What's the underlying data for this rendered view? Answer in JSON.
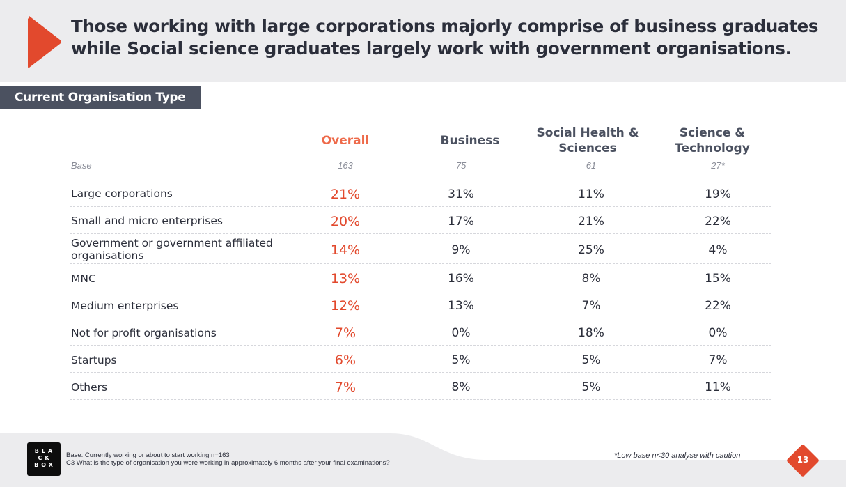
{
  "headline": {
    "line1": "Those working with large corporations majorly comprise of business graduates",
    "line2": "while Social science graduates largely work with government organisations."
  },
  "section_tag": "Current Organisation Type",
  "columns": {
    "overall": "Overall",
    "business": "Business",
    "social_line1": "Social Health &",
    "social_line2": "Sciences",
    "science_line1": "Science &",
    "science_line2": "Technology"
  },
  "base": {
    "label": "Base",
    "overall": "163",
    "business": "75",
    "social": "61",
    "science": "27*"
  },
  "rows": [
    {
      "label": "Large corporations",
      "overall": "21%",
      "business": "31%",
      "social": "11%",
      "science": "19%"
    },
    {
      "label": "Small and micro enterprises",
      "overall": "20%",
      "business": "17%",
      "social": "21%",
      "science": "22%"
    },
    {
      "label_line1": "Government or government affiliated",
      "label_line2": "organisations",
      "overall": "14%",
      "business": "9%",
      "social": "25%",
      "science": "4%"
    },
    {
      "label": "MNC",
      "overall": "13%",
      "business": "16%",
      "social": "8%",
      "science": "15%"
    },
    {
      "label": "Medium enterprises",
      "overall": "12%",
      "business": "13%",
      "social": "7%",
      "science": "22%"
    },
    {
      "label": "Not for profit organisations",
      "overall": "7%",
      "business": "0%",
      "social": "18%",
      "science": "0%"
    },
    {
      "label": "Startups",
      "overall": "6%",
      "business": "5%",
      "social": "5%",
      "science": "7%"
    },
    {
      "label": "Others",
      "overall": "7%",
      "business": "8%",
      "social": "5%",
      "science": "11%"
    }
  ],
  "footer": {
    "logo_line1": "BLA",
    "logo_line2": "CK",
    "logo_line3": "BOX",
    "base_note": "Base: Currently working or about to start working n=163",
    "question_note": "C3 What is the type of organisation you were working in approximately 6 months after your final examinations?",
    "caution": "*Low base n<30 analyse with caution",
    "page_number": "13"
  },
  "colors": {
    "accent": "#e2492d",
    "header_bg": "#ececee",
    "tag_bg": "#4b5160",
    "text": "#2b2e3a"
  }
}
